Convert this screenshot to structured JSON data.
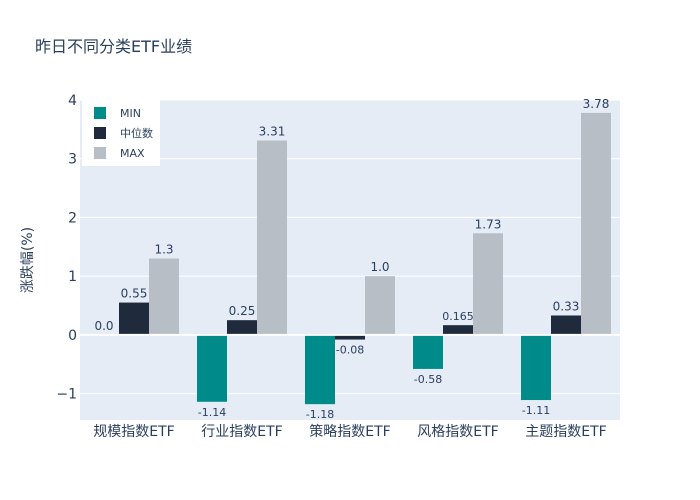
{
  "chart_data": {
    "type": "bar",
    "title": "昨日不同分类ETF业绩",
    "ylabel": "涨跌幅(%)",
    "xlabel": "",
    "categories": [
      "规模指数ETF",
      "行业指数ETF",
      "策略指数ETF",
      "风格指数ETF",
      "主题指数ETF"
    ],
    "series": [
      {
        "name": "MIN",
        "color": "#008b8b",
        "values": [
          0.0,
          -1.14,
          -1.18,
          -0.58,
          -1.11
        ],
        "labels": [
          "0.0",
          "-1.14",
          "-1.18",
          "-0.58",
          "-1.11"
        ]
      },
      {
        "name": "中位数",
        "color": "#1f2a3d",
        "values": [
          0.55,
          0.25,
          -0.08,
          0.165,
          0.33
        ],
        "labels": [
          "0.55",
          "0.25",
          "-0.08",
          "0.165",
          "0.33"
        ]
      },
      {
        "name": "MAX",
        "color": "#b8bec6",
        "values": [
          1.3,
          3.31,
          1.0,
          1.73,
          3.78
        ],
        "labels": [
          "1.3",
          "3.31",
          "1.0",
          "1.73",
          "3.78"
        ]
      }
    ],
    "ylim": [
      -1.45,
      4.0
    ],
    "yticks": [
      -1,
      0,
      1,
      2,
      3,
      4
    ],
    "ytick_labels": [
      "−1",
      "0",
      "1",
      "2",
      "3",
      "4"
    ],
    "grid": true,
    "legend": "top-left",
    "plot_bgcolor": "#e5ecf6"
  }
}
